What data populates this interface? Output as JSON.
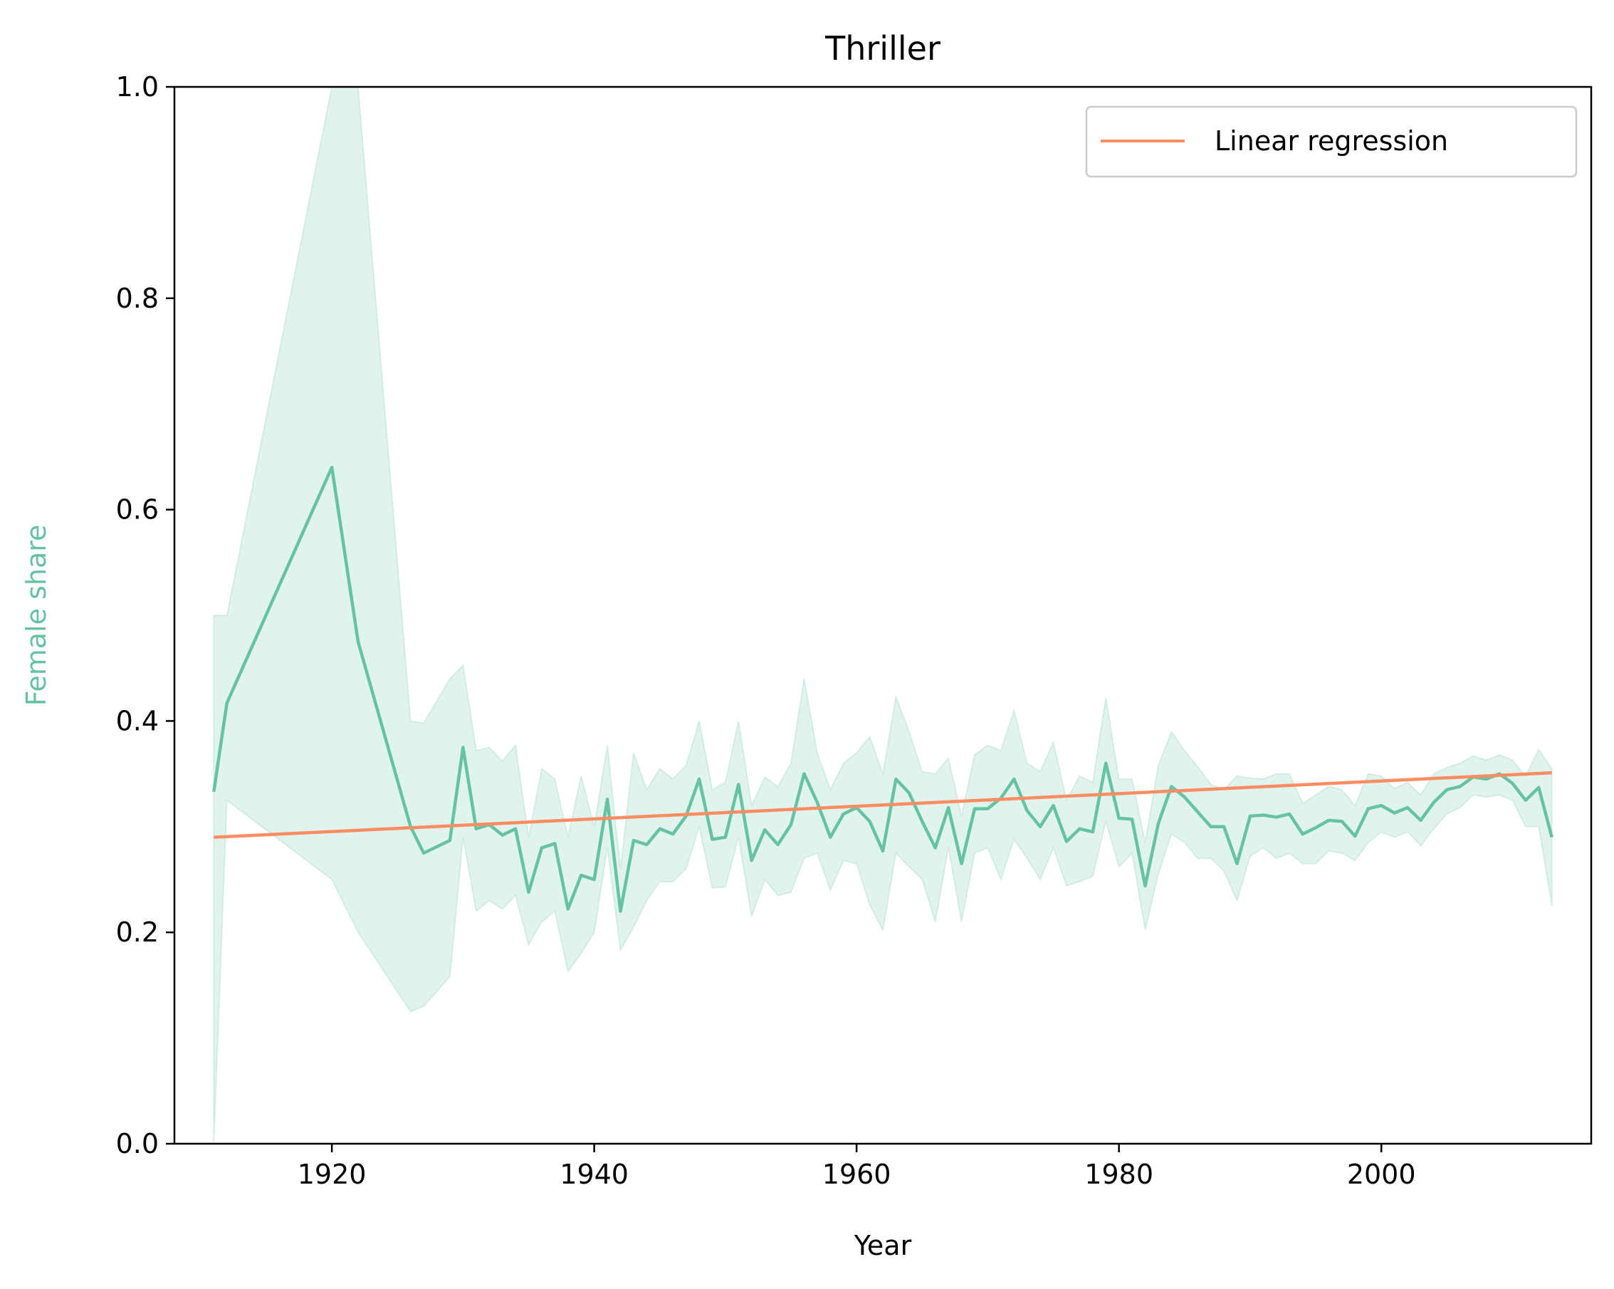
{
  "chart_data": {
    "type": "line",
    "title": "Thriller",
    "xlabel": "Year",
    "ylabel": "Female share",
    "xlim": [
      1908,
      2016
    ],
    "ylim": [
      0.0,
      1.0
    ],
    "x_ticks": [
      1920,
      1940,
      1960,
      1980,
      2000
    ],
    "y_ticks": [
      0.0,
      0.2,
      0.4,
      0.6,
      0.8,
      1.0
    ],
    "y_tick_labels": [
      "0.0",
      "0.2",
      "0.4",
      "0.6",
      "0.8",
      "1.0"
    ],
    "grid": false,
    "legend": {
      "position": "top-right",
      "entries": [
        "Linear regression"
      ]
    },
    "colors": {
      "series": "#66c2a5",
      "band": "#66c2a5",
      "regression": "#fc8d62",
      "axis": "#000000",
      "legend_border": "#cccccc"
    },
    "series": [
      {
        "x": [
          1911,
          1912,
          1920,
          1922,
          1926,
          1927,
          1929,
          1930,
          1931,
          1932,
          1933,
          1934,
          1935,
          1936,
          1937,
          1938,
          1939,
          1940,
          1941,
          1942,
          1943,
          1944,
          1945,
          1946,
          1947,
          1948,
          1949,
          1950,
          1951,
          1952,
          1953,
          1954,
          1955,
          1956,
          1957,
          1958,
          1959,
          1960,
          1961,
          1962,
          1963,
          1964,
          1965,
          1966,
          1967,
          1968,
          1969,
          1970,
          1971,
          1972,
          1973,
          1974,
          1975,
          1976,
          1977,
          1978,
          1979,
          1980,
          1981,
          1982,
          1983,
          1984,
          1985,
          1986,
          1987,
          1988,
          1989,
          1990,
          1991,
          1992,
          1993,
          1994,
          1995,
          1996,
          1997,
          1998,
          1999,
          2000,
          2001,
          2002,
          2003,
          2004,
          2005,
          2006,
          2007,
          2008,
          2009,
          2010,
          2011,
          2012,
          2013
        ],
        "values": [
          0.333,
          0.417,
          0.64,
          0.475,
          0.3,
          0.275,
          0.287,
          0.375,
          0.298,
          0.302,
          0.292,
          0.298,
          0.238,
          0.28,
          0.284,
          0.222,
          0.254,
          0.25,
          0.326,
          0.22,
          0.287,
          0.283,
          0.298,
          0.293,
          0.31,
          0.345,
          0.288,
          0.29,
          0.34,
          0.268,
          0.297,
          0.283,
          0.302,
          0.35,
          0.323,
          0.29,
          0.312,
          0.318,
          0.305,
          0.277,
          0.345,
          0.332,
          0.305,
          0.28,
          0.318,
          0.265,
          0.317,
          0.317,
          0.327,
          0.345,
          0.315,
          0.3,
          0.32,
          0.286,
          0.298,
          0.295,
          0.36,
          0.308,
          0.307,
          0.244,
          0.303,
          0.338,
          0.328,
          0.314,
          0.3,
          0.3,
          0.265,
          0.31,
          0.311,
          0.309,
          0.312,
          0.293,
          0.299,
          0.306,
          0.305,
          0.291,
          0.317,
          0.32,
          0.313,
          0.318,
          0.306,
          0.323,
          0.335,
          0.338,
          0.347,
          0.345,
          0.35,
          0.341,
          0.325,
          0.337,
          0.29
        ],
        "ci_lower": [
          0.0,
          0.325,
          0.25,
          0.2,
          0.125,
          0.13,
          0.158,
          0.29,
          0.22,
          0.23,
          0.222,
          0.235,
          0.188,
          0.21,
          0.22,
          0.163,
          0.18,
          0.2,
          0.28,
          0.183,
          0.205,
          0.23,
          0.248,
          0.248,
          0.26,
          0.3,
          0.242,
          0.243,
          0.29,
          0.215,
          0.25,
          0.235,
          0.238,
          0.27,
          0.275,
          0.24,
          0.268,
          0.265,
          0.226,
          0.202,
          0.275,
          0.262,
          0.25,
          0.21,
          0.28,
          0.21,
          0.275,
          0.28,
          0.25,
          0.288,
          0.27,
          0.25,
          0.28,
          0.244,
          0.248,
          0.253,
          0.305,
          0.262,
          0.275,
          0.202,
          0.255,
          0.293,
          0.285,
          0.27,
          0.27,
          0.258,
          0.23,
          0.272,
          0.28,
          0.27,
          0.275,
          0.265,
          0.265,
          0.277,
          0.275,
          0.268,
          0.285,
          0.295,
          0.29,
          0.295,
          0.282,
          0.298,
          0.312,
          0.318,
          0.33,
          0.328,
          0.33,
          0.325,
          0.3,
          0.3,
          0.225
        ],
        "ci_upper": [
          0.5,
          0.5,
          1.0,
          1.0,
          0.4,
          0.398,
          0.44,
          0.453,
          0.372,
          0.375,
          0.362,
          0.377,
          0.29,
          0.355,
          0.345,
          0.29,
          0.348,
          0.3,
          0.377,
          0.26,
          0.37,
          0.335,
          0.355,
          0.345,
          0.358,
          0.4,
          0.335,
          0.342,
          0.4,
          0.32,
          0.347,
          0.338,
          0.36,
          0.44,
          0.37,
          0.335,
          0.36,
          0.37,
          0.385,
          0.35,
          0.423,
          0.39,
          0.352,
          0.35,
          0.365,
          0.31,
          0.368,
          0.377,
          0.372,
          0.41,
          0.36,
          0.352,
          0.38,
          0.325,
          0.348,
          0.342,
          0.422,
          0.345,
          0.345,
          0.285,
          0.358,
          0.39,
          0.372,
          0.357,
          0.34,
          0.335,
          0.348,
          0.346,
          0.345,
          0.35,
          0.35,
          0.322,
          0.33,
          0.338,
          0.335,
          0.32,
          0.35,
          0.348,
          0.336,
          0.342,
          0.33,
          0.35,
          0.356,
          0.36,
          0.367,
          0.363,
          0.368,
          0.363,
          0.348,
          0.373,
          0.355
        ]
      },
      {
        "name": "Linear regression",
        "x": [
          1911,
          2013
        ],
        "values": [
          0.29,
          0.351
        ]
      }
    ]
  }
}
